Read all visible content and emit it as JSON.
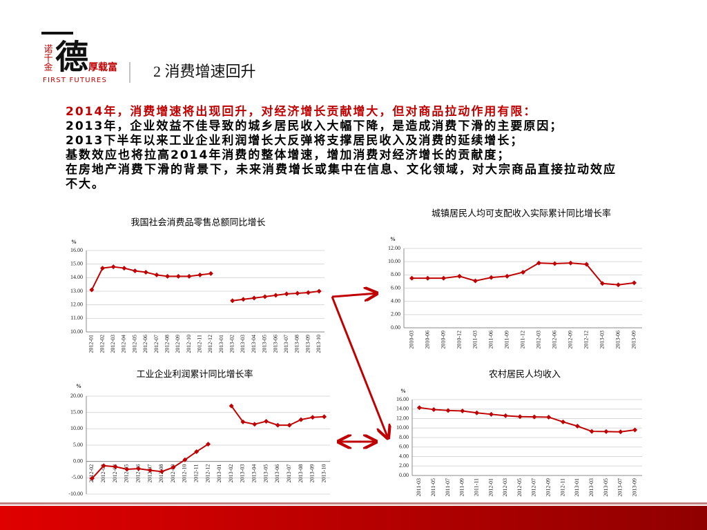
{
  "header": {
    "logo_side": "诺千金",
    "logo_main": "德",
    "logo_slogan": "厚载富",
    "logo_en": "FIRST FUTURES",
    "title": "2 消费增速回升"
  },
  "text": {
    "lead": "2014年，消费增速将出现回升，对经济增长贡献增大，但对商品拉动作用有限：",
    "points": [
      "2013年，企业效益不佳导致的城乡居民收入大幅下降，是造成消费下滑的主要原因；",
      "2013下半年以来工业企业利润增长大反弹将支撑居民收入及消费的延续增长；",
      "基数效应也将拉高2014年消费的整体增速，增加消费对经济增长的贡献度；",
      "在房地产消费下滑的背景下，未来消费增长或集中在信息、文化领域，对大宗商品直接拉动效应不大。"
    ]
  },
  "chart_data": [
    {
      "type": "line",
      "title": "我国社会消费品零售总额同比增长",
      "y_label": "%",
      "color": "#c00000",
      "grid": true,
      "categories": [
        "2012-01",
        "2012-02",
        "2012-03",
        "2012-04",
        "2012-05",
        "2012-06",
        "2012-07",
        "2012-08",
        "2012-09",
        "2012-10",
        "2012-11",
        "2012-12",
        "2013-01",
        "2013-02",
        "2013-03",
        "2013-04",
        "2013-05",
        "2013-06",
        "2013-07",
        "2013-08",
        "2013-09",
        "2013-10"
      ],
      "values": [
        13.1,
        14.7,
        14.8,
        14.7,
        14.5,
        14.4,
        14.2,
        14.1,
        14.1,
        14.1,
        14.2,
        14.3,
        null,
        12.3,
        12.4,
        12.5,
        12.6,
        12.7,
        12.8,
        12.85,
        12.9,
        13.0
      ],
      "ylim": [
        10,
        16
      ],
      "yticks": [
        {
          "value": 10,
          "label": "10.00"
        },
        {
          "value": 11,
          "label": "11.00"
        },
        {
          "value": 12,
          "label": "12.00"
        },
        {
          "value": 13,
          "label": "13.00"
        },
        {
          "value": 14,
          "label": "14.00"
        },
        {
          "value": 15,
          "label": "15.00"
        },
        {
          "value": 16,
          "label": "16.00"
        }
      ]
    },
    {
      "type": "line",
      "title": "城镇居民人均可支配收入实际累计同比增长率",
      "y_label": "%",
      "color": "#c00000",
      "grid": true,
      "categories": [
        "2010-03",
        "2010-06",
        "2010-09",
        "2010-12",
        "2011-03",
        "2011-06",
        "2011-09",
        "2011-12",
        "2012-03",
        "2012-06",
        "2012-09",
        "2012-12",
        "2013-03",
        "2013-06",
        "2013-09"
      ],
      "values": [
        7.5,
        7.5,
        7.5,
        7.8,
        7.1,
        7.6,
        7.8,
        8.4,
        9.8,
        9.7,
        9.8,
        9.6,
        6.7,
        6.5,
        6.8
      ],
      "ylim": [
        0,
        12
      ],
      "yticks": [
        {
          "value": 0,
          "label": "0.00"
        },
        {
          "value": 2,
          "label": "2.00"
        },
        {
          "value": 4,
          "label": "4.00"
        },
        {
          "value": 6,
          "label": "6.00"
        },
        {
          "value": 8,
          "label": "8.00"
        },
        {
          "value": 10,
          "label": "10.00"
        },
        {
          "value": 12,
          "label": "12.00"
        }
      ]
    },
    {
      "type": "line",
      "title": "工业企业利润累计同比增长率",
      "y_label": "%",
      "color": "#c00000",
      "grid": true,
      "categories": [
        "2012-02",
        "2012-03",
        "2012-04",
        "2012-05",
        "2012-06",
        "2012-07",
        "2012-08",
        "2012-09",
        "2012-10",
        "2012-11",
        "2012-12",
        "2013-01",
        "2013-02",
        "2013-03",
        "2013-04",
        "2013-05",
        "2013-06",
        "2013-07",
        "2013-08",
        "2013-09",
        "2013-10"
      ],
      "values": [
        -5.2,
        -1.3,
        -1.6,
        -2.4,
        -2.2,
        -2.7,
        -3.1,
        -1.8,
        0.5,
        3.0,
        5.3,
        null,
        17.0,
        12.1,
        11.4,
        12.3,
        11.1,
        11.1,
        12.8,
        13.5,
        13.7
      ],
      "ylim": [
        -10,
        20
      ],
      "yticks": [
        {
          "value": -10,
          "label": "-10.00"
        },
        {
          "value": -5,
          "label": "-5.00"
        },
        {
          "value": 0,
          "label": "0.00"
        },
        {
          "value": 5,
          "label": "5.00"
        },
        {
          "value": 10,
          "label": "10.00"
        },
        {
          "value": 15,
          "label": "15.00"
        },
        {
          "value": 20,
          "label": "20.00"
        }
      ]
    },
    {
      "type": "line",
      "title": "农村居民人均收入",
      "y_label": "%",
      "color": "#c00000",
      "grid": true,
      "categories": [
        "2011-03",
        "2011-05",
        "2011-07",
        "2011-09",
        "2011-11",
        "2012-01",
        "2012-03",
        "2012-05",
        "2012-07",
        "2012-09",
        "2012-11",
        "2013-01",
        "2013-03",
        "2013-05",
        "2013-07",
        "2013-09"
      ],
      "values": [
        14.3,
        13.9,
        13.7,
        13.6,
        13.2,
        12.9,
        12.6,
        12.4,
        12.35,
        12.3,
        11.3,
        10.4,
        9.3,
        9.25,
        9.2,
        9.6
      ],
      "ylim": [
        0,
        16
      ],
      "yticks": [
        {
          "value": 0,
          "label": "0.00"
        },
        {
          "value": 2,
          "label": "2.00"
        },
        {
          "value": 4,
          "label": "4.00"
        },
        {
          "value": 6,
          "label": "6.00"
        },
        {
          "value": 8,
          "label": "8.00"
        },
        {
          "value": 10,
          "label": "10.00"
        },
        {
          "value": 12,
          "label": "12.00"
        },
        {
          "value": 14,
          "label": "14.00"
        },
        {
          "value": 16,
          "label": "16.00"
        }
      ]
    }
  ]
}
